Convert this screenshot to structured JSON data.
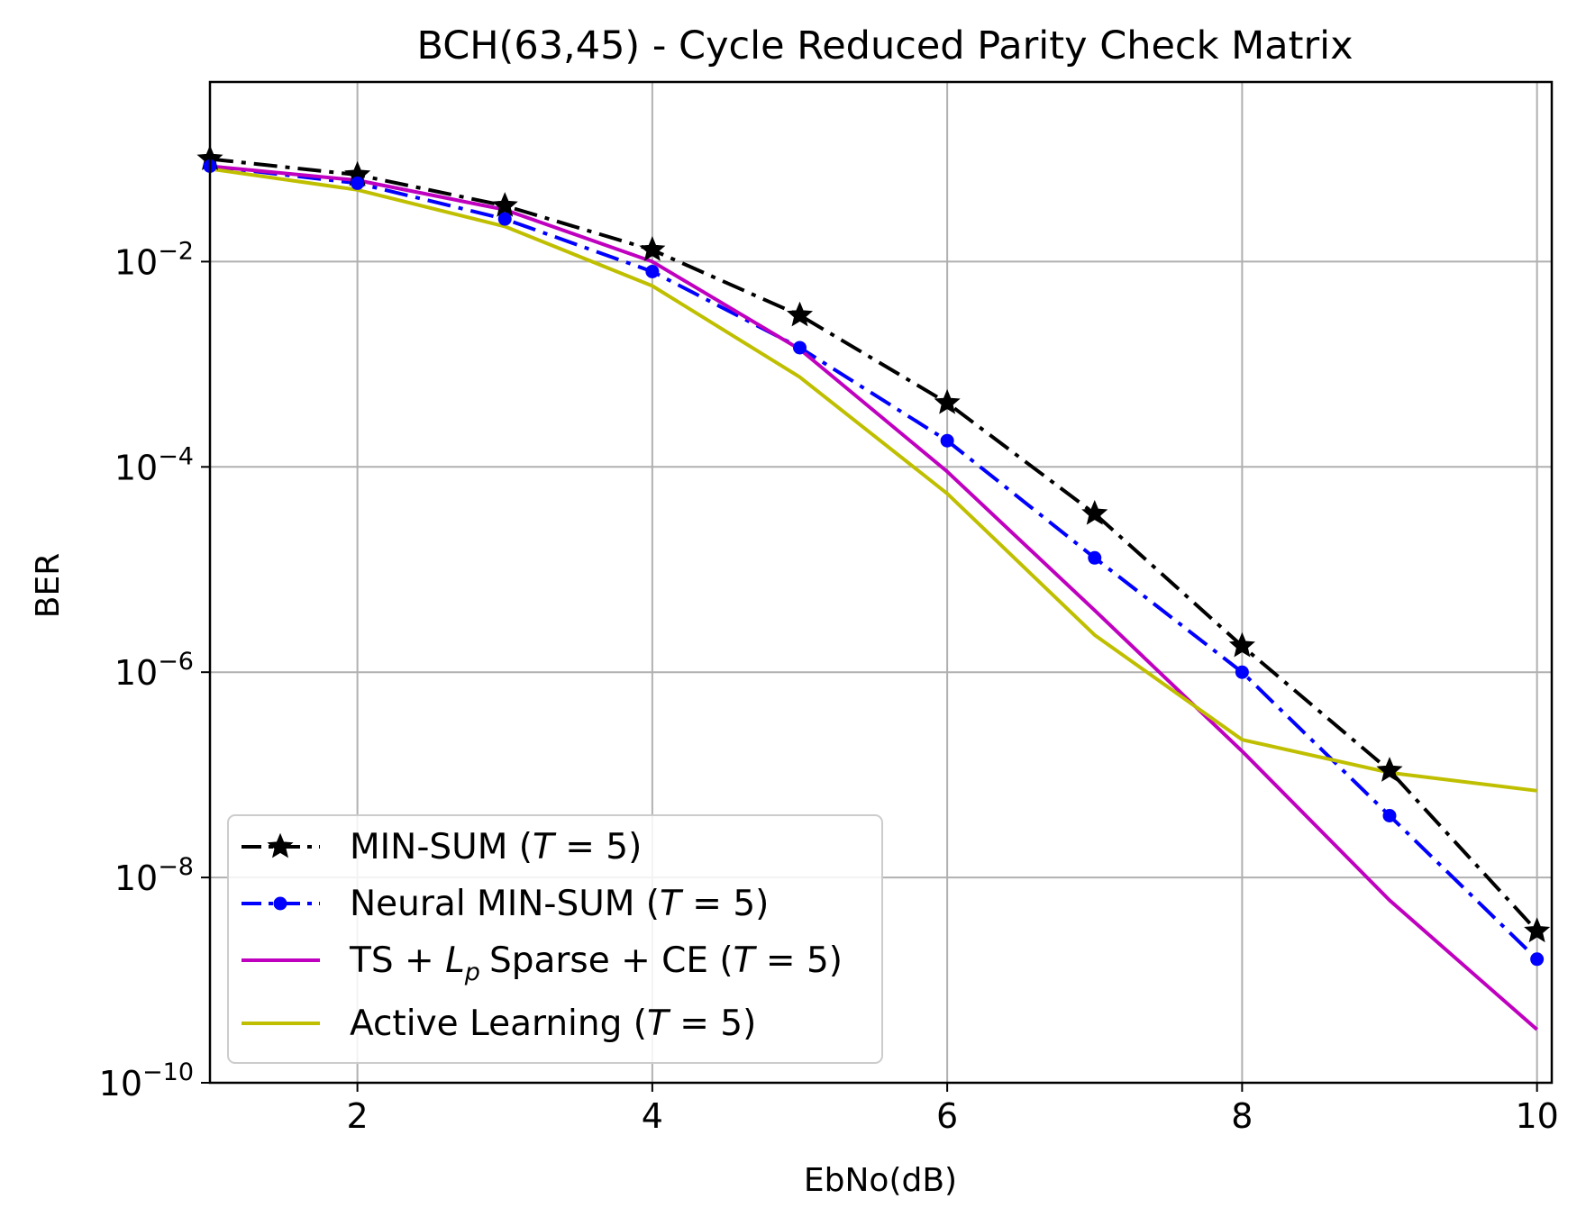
{
  "chart_data": {
    "type": "line",
    "title": "BCH(63,45) - Cycle Reduced Parity Check Matrix",
    "xlabel": "EbNo(dB)",
    "ylabel": "BER",
    "xlim": [
      1,
      10.1
    ],
    "ylim_log10": [
      -10,
      -0.25
    ],
    "yscale": "log",
    "grid": true,
    "legend_position": "lower-left",
    "x_ticks": [
      2,
      4,
      6,
      8,
      10
    ],
    "y_tick_exponents": [
      -2,
      -4,
      -6,
      -8,
      -10
    ],
    "series": [
      {
        "name": "MIN-SUM",
        "legend_text": "MIN-SUM (",
        "color": "#000000",
        "style": "dashdot",
        "marker": "star",
        "x": [
          1,
          2,
          3,
          4,
          5,
          6,
          7,
          8,
          9,
          10
        ],
        "y": [
          0.1,
          0.07,
          0.035,
          0.013,
          0.003,
          0.00042,
          3.5e-05,
          1.8e-06,
          1.1e-07,
          3e-09
        ]
      },
      {
        "name": "Neural MIN-SUM",
        "legend_text": "Neural MIN-SUM (",
        "color": "#0000ff",
        "style": "dashdot",
        "marker": "circle",
        "x": [
          1,
          2,
          3,
          4,
          5,
          6,
          7,
          8,
          9,
          10
        ],
        "y": [
          0.085,
          0.058,
          0.026,
          0.008,
          0.00145,
          0.00018,
          1.3e-05,
          1e-06,
          4e-08,
          1.6e-09
        ]
      },
      {
        "name": "TS + Lp Sparse + CE",
        "legend_text": "TS + ",
        "legend_text_after": "Sparse + CE (",
        "color": "#bf00bf",
        "style": "solid",
        "marker": "none",
        "x": [
          1,
          2,
          3,
          4,
          5,
          6,
          7,
          8,
          9,
          10
        ],
        "y": [
          0.085,
          0.062,
          0.032,
          0.01,
          0.0014,
          9e-05,
          4e-06,
          1.7e-07,
          6e-09,
          3.3e-10
        ]
      },
      {
        "name": "Active Learning",
        "legend_text": "Active Learning (",
        "color": "#bfbf00",
        "style": "solid",
        "marker": "none",
        "x": [
          1,
          2,
          3,
          4,
          5,
          6,
          7,
          8,
          9,
          10
        ],
        "y": [
          0.08,
          0.05,
          0.022,
          0.0058,
          0.00075,
          5.5e-05,
          2.3e-06,
          2.2e-07,
          1.05e-07,
          7e-08
        ]
      }
    ],
    "legend_math": {
      "T_symbol": "T",
      "equals_value": " = 5",
      "close_paren": ")",
      "Lp_L": "L",
      "Lp_sub": "p"
    },
    "tick_base": "10"
  }
}
